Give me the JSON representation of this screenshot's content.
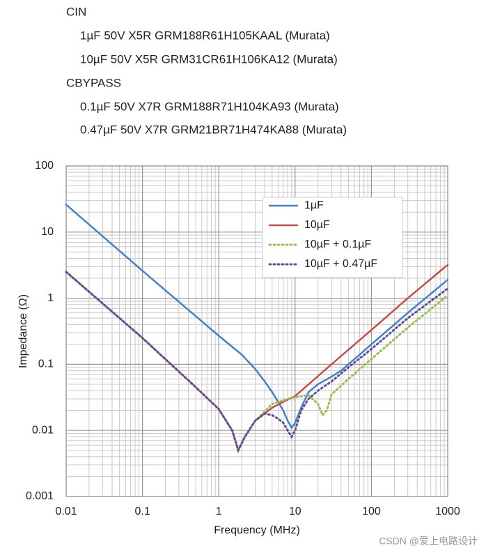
{
  "header": {
    "cin_title": "CIN",
    "cin_items": [
      "1µF 50V X5R GRM188R61H105KAAL (Murata)",
      "10µF 50V X5R GRM31CR61H106KA12 (Murata)"
    ],
    "cbypass_title": "CBYPASS",
    "cbypass_items": [
      "0.1µF 50V X7R GRM188R71H104KA93 (Murata)",
      "0.47µF 50V X7R GRM21BR71H474KA88 (Murata)"
    ]
  },
  "chart_data": {
    "type": "line",
    "x_label": "Frequency (MHz)",
    "y_label": "Impedance (Ω)",
    "xscale": "log",
    "yscale": "log",
    "grid": true,
    "minor_grid": true,
    "legend": "upper right",
    "xlim": [
      0.01,
      1000
    ],
    "ylim": [
      0.001,
      100
    ],
    "xticks": [
      0.01,
      0.1,
      1,
      10,
      100,
      1000
    ],
    "yticks": [
      0.001,
      0.01,
      0.1,
      1,
      10,
      100
    ],
    "series": [
      {
        "name": "1µF",
        "color": "#4a7fc1",
        "style": "solid",
        "x": [
          0.01,
          0.1,
          1,
          2,
          3,
          4,
          5,
          6,
          7,
          8,
          9,
          10,
          12,
          15,
          20,
          30,
          40,
          60,
          100,
          300,
          1000
        ],
        "values": [
          26,
          2.6,
          0.27,
          0.14,
          0.085,
          0.055,
          0.038,
          0.027,
          0.02,
          0.014,
          0.011,
          0.013,
          0.022,
          0.038,
          0.05,
          0.065,
          0.08,
          0.12,
          0.2,
          0.6,
          1.9
        ]
      },
      {
        "name": "10µF",
        "color": "#c0504d",
        "style": "solid",
        "x": [
          0.01,
          0.1,
          0.5,
          1,
          1.5,
          1.8,
          2.2,
          3,
          5,
          7,
          10,
          30,
          100,
          300,
          1000
        ],
        "values": [
          2.5,
          0.25,
          0.045,
          0.021,
          0.01,
          0.005,
          0.008,
          0.014,
          0.022,
          0.027,
          0.033,
          0.1,
          0.33,
          1,
          3.2
        ]
      },
      {
        "name": "10µF + 0.1µF",
        "color": "#9bbb59",
        "style": "dotted",
        "x": [
          0.01,
          0.1,
          0.5,
          1,
          1.5,
          1.8,
          2.2,
          3,
          5,
          8,
          10,
          15,
          20,
          23,
          26,
          30,
          50,
          100,
          300,
          1000
        ],
        "values": [
          2.5,
          0.25,
          0.045,
          0.021,
          0.01,
          0.005,
          0.008,
          0.014,
          0.025,
          0.03,
          0.032,
          0.034,
          0.025,
          0.017,
          0.02,
          0.035,
          0.06,
          0.12,
          0.36,
          1.1
        ]
      },
      {
        "name": "10µF + 0.47µF",
        "color": "#5b4f9a",
        "style": "dotted",
        "x": [
          0.01,
          0.1,
          0.5,
          1,
          1.5,
          1.8,
          2.2,
          3,
          4,
          5,
          6,
          7,
          8,
          9,
          10,
          12,
          15,
          20,
          30,
          50,
          100,
          300,
          1000
        ],
        "values": [
          2.5,
          0.25,
          0.045,
          0.021,
          0.01,
          0.005,
          0.008,
          0.014,
          0.018,
          0.017,
          0.015,
          0.013,
          0.01,
          0.008,
          0.01,
          0.02,
          0.03,
          0.04,
          0.055,
          0.09,
          0.17,
          0.5,
          1.4
        ]
      }
    ]
  },
  "watermark": "CSDN @爱上电路设计"
}
